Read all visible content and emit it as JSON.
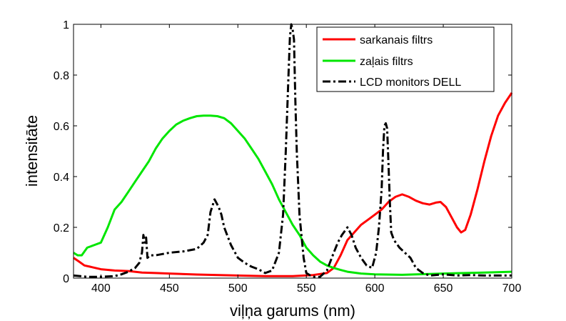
{
  "chart_data": {
    "type": "line",
    "title": "",
    "xlabel": "viļņa garums (nm)",
    "ylabel": "intensitāte",
    "xlim": [
      380,
      700
    ],
    "ylim": [
      0,
      1
    ],
    "xticks": [
      400,
      450,
      500,
      550,
      600,
      650,
      700
    ],
    "yticks": [
      0,
      0.2,
      0.4,
      0.6,
      0.8,
      1
    ],
    "ytick_labels": [
      "0",
      "0.2",
      "0.4",
      "0.6",
      "0.8",
      "1"
    ],
    "grid": false,
    "legend_position": "top-right",
    "series": [
      {
        "name": "sarkanais filtrs",
        "color": "#ff0000",
        "style": "solid",
        "x": [
          380,
          384,
          388,
          392,
          396,
          400,
          410,
          420,
          430,
          440,
          450,
          470,
          500,
          520,
          540,
          555,
          565,
          570,
          575,
          580,
          585,
          590,
          595,
          600,
          605,
          610,
          615,
          620,
          625,
          630,
          635,
          640,
          645,
          648,
          652,
          656,
          660,
          663,
          666,
          670,
          675,
          680,
          685,
          690,
          695,
          700
        ],
        "y": [
          0.08,
          0.065,
          0.05,
          0.045,
          0.04,
          0.035,
          0.03,
          0.028,
          0.022,
          0.02,
          0.018,
          0.014,
          0.01,
          0.008,
          0.008,
          0.012,
          0.02,
          0.04,
          0.09,
          0.15,
          0.18,
          0.21,
          0.23,
          0.25,
          0.27,
          0.3,
          0.32,
          0.33,
          0.32,
          0.305,
          0.295,
          0.29,
          0.298,
          0.3,
          0.28,
          0.24,
          0.2,
          0.18,
          0.19,
          0.25,
          0.35,
          0.46,
          0.56,
          0.64,
          0.69,
          0.73
        ]
      },
      {
        "name": "zaļais filtrs",
        "color": "#00e600",
        "style": "solid",
        "x": [
          380,
          383,
          386,
          390,
          395,
          400,
          405,
          410,
          415,
          420,
          425,
          430,
          435,
          440,
          445,
          450,
          455,
          460,
          465,
          470,
          475,
          480,
          485,
          490,
          495,
          500,
          505,
          510,
          515,
          520,
          525,
          530,
          535,
          540,
          545,
          550,
          555,
          560,
          565,
          570,
          575,
          580,
          590,
          600,
          620,
          650,
          680,
          700
        ],
        "y": [
          0.1,
          0.09,
          0.09,
          0.12,
          0.13,
          0.14,
          0.2,
          0.27,
          0.3,
          0.34,
          0.38,
          0.42,
          0.46,
          0.51,
          0.55,
          0.58,
          0.605,
          0.62,
          0.63,
          0.638,
          0.64,
          0.64,
          0.638,
          0.63,
          0.61,
          0.58,
          0.55,
          0.51,
          0.47,
          0.42,
          0.37,
          0.31,
          0.26,
          0.21,
          0.17,
          0.12,
          0.09,
          0.065,
          0.05,
          0.04,
          0.032,
          0.025,
          0.018,
          0.015,
          0.013,
          0.018,
          0.022,
          0.025
        ]
      },
      {
        "name": "LCD monitors DELL",
        "color": "#000000",
        "style": "dashdot",
        "x": [
          380,
          390,
          400,
          410,
          415,
          420,
          425,
          428,
          430,
          431,
          432,
          433,
          434,
          436,
          440,
          450,
          460,
          470,
          475,
          478,
          480,
          483,
          486,
          488,
          490,
          495,
          500,
          505,
          510,
          515,
          520,
          525,
          530,
          533,
          535,
          537,
          538,
          539,
          540,
          541,
          542,
          543,
          545,
          548,
          550,
          553,
          556,
          560,
          565,
          570,
          573,
          576,
          580,
          583,
          586,
          590,
          594,
          598,
          601,
          603,
          605,
          606,
          607,
          608,
          609,
          610,
          611,
          612,
          614,
          618,
          622,
          626,
          628,
          630,
          635,
          640,
          650,
          660,
          670,
          680,
          690,
          700
        ],
        "y": [
          0.01,
          0.005,
          0.005,
          0.008,
          0.015,
          0.025,
          0.04,
          0.06,
          0.1,
          0.17,
          0.14,
          0.16,
          0.08,
          0.09,
          0.09,
          0.1,
          0.105,
          0.115,
          0.14,
          0.17,
          0.26,
          0.31,
          0.28,
          0.25,
          0.2,
          0.13,
          0.08,
          0.06,
          0.045,
          0.035,
          0.02,
          0.03,
          0.1,
          0.25,
          0.5,
          0.8,
          0.95,
          1.0,
          0.98,
          0.94,
          0.7,
          0.5,
          0.25,
          0.08,
          0.02,
          0.01,
          0.005,
          0.005,
          0.03,
          0.1,
          0.14,
          0.17,
          0.2,
          0.17,
          0.12,
          0.08,
          0.05,
          0.04,
          0.1,
          0.2,
          0.35,
          0.5,
          0.6,
          0.61,
          0.59,
          0.45,
          0.3,
          0.18,
          0.15,
          0.12,
          0.1,
          0.08,
          0.06,
          0.04,
          0.02,
          0.01,
          0.015,
          0.01,
          0.012,
          0.01,
          0.01,
          0.01
        ]
      }
    ]
  }
}
